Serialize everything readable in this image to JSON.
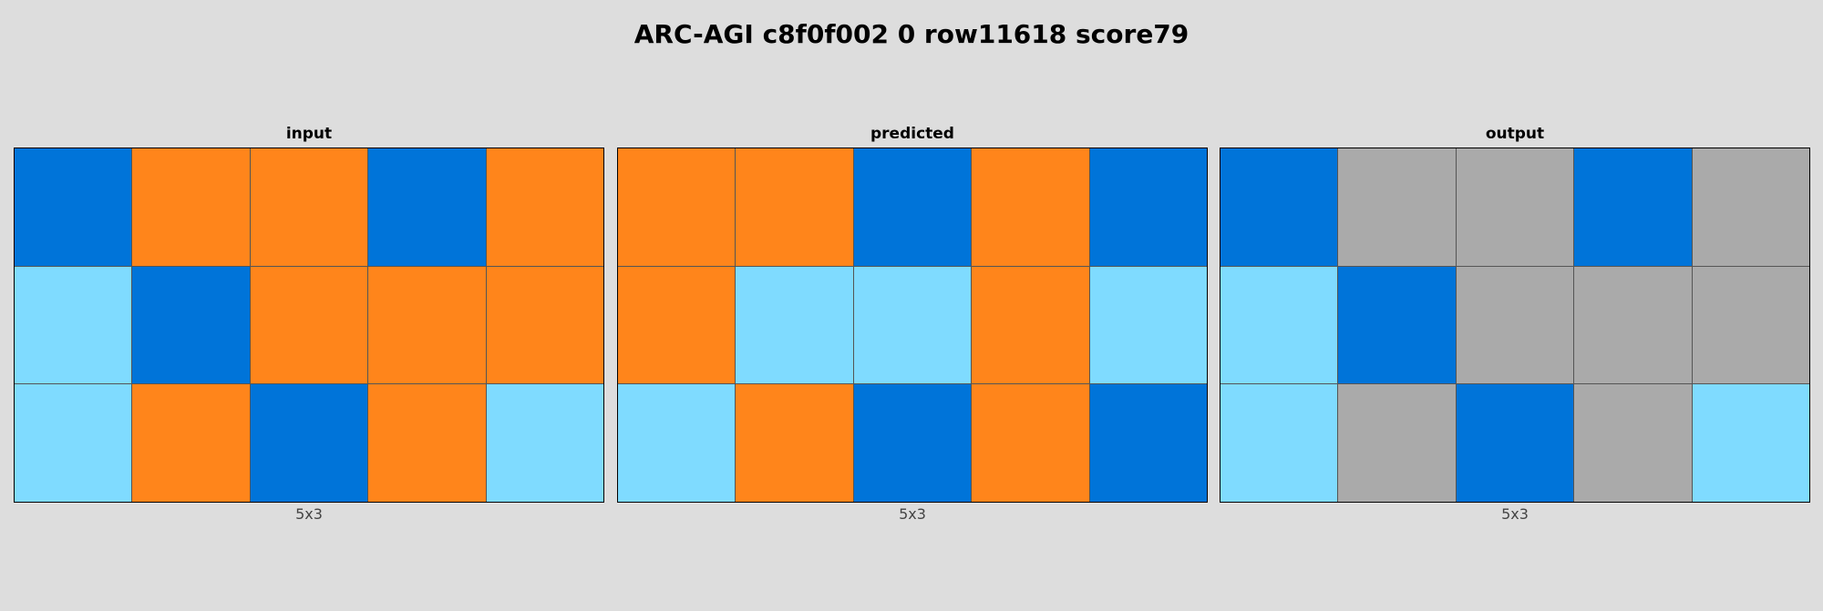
{
  "title": "ARC-AGI c8f0f002 0 row11618 score79",
  "palette": {
    "1": "#0074D9",
    "7": "#FF851B",
    "8": "#7FDBFF",
    "5": "#AAAAAA"
  },
  "panels": [
    {
      "label": "input",
      "dims": "5x3",
      "grid": [
        [
          1,
          7,
          7,
          1,
          7
        ],
        [
          8,
          1,
          7,
          7,
          7
        ],
        [
          8,
          7,
          1,
          7,
          8
        ]
      ]
    },
    {
      "label": "predicted",
      "dims": "5x3",
      "grid": [
        [
          7,
          7,
          1,
          7,
          1
        ],
        [
          7,
          8,
          8,
          7,
          8
        ],
        [
          8,
          7,
          1,
          7,
          1
        ]
      ]
    },
    {
      "label": "output",
      "dims": "5x3",
      "grid": [
        [
          1,
          5,
          5,
          1,
          5
        ],
        [
          8,
          1,
          5,
          5,
          5
        ],
        [
          8,
          5,
          1,
          5,
          8
        ]
      ]
    }
  ]
}
